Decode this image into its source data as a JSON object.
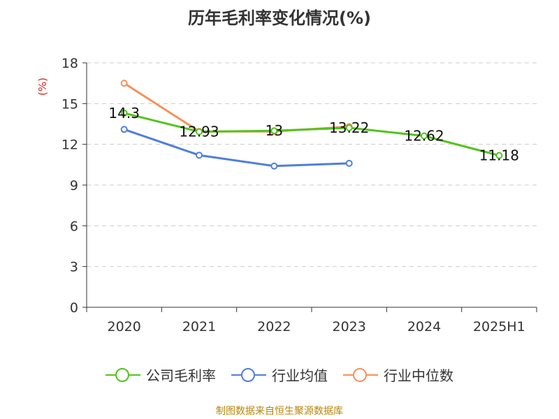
{
  "chart_data": {
    "type": "line",
    "title": "历年毛利率变化情况(%)",
    "unit_label": "(%)",
    "categories": [
      "2020",
      "2021",
      "2022",
      "2023",
      "2024",
      "2025H1"
    ],
    "ylim": [
      0,
      18
    ],
    "yticks": [
      0,
      3,
      6,
      9,
      12,
      15,
      18
    ],
    "grid": true,
    "legend_position": "bottom",
    "series": [
      {
        "name": "公司毛利率",
        "color": "#52c41a",
        "values": [
          14.3,
          12.93,
          13,
          13.22,
          12.62,
          11.18
        ],
        "labels": [
          "14.3",
          "12.93",
          "13",
          "13.22",
          "12.62",
          "11.18"
        ]
      },
      {
        "name": "行业均值",
        "color": "#4f7fdc",
        "values": [
          13.1,
          11.2,
          10.4,
          10.6,
          null,
          null
        ]
      },
      {
        "name": "行业中位数",
        "color": "#f5915a",
        "values": [
          16.5,
          12.95,
          12.95,
          13.3,
          null,
          null
        ]
      }
    ]
  },
  "source": "制图数据来自恒生聚源数据库"
}
